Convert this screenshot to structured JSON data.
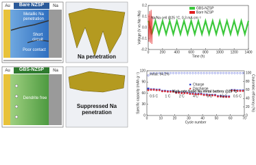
{
  "diagrams": [
    {
      "header": "Bare NZSP",
      "left": "Au",
      "right": "Na",
      "notes": [
        "Metallic Na penetration",
        "Short circuit",
        "Poor contact"
      ]
    },
    {
      "header": "GBS-NZSP",
      "left": "Au",
      "right": "Na",
      "notes": [
        "Dendrite free"
      ]
    }
  ],
  "images": [
    {
      "caption": "Na penetration"
    },
    {
      "caption": "Suppressed Na penetration"
    }
  ],
  "chart_data": [
    {
      "type": "line",
      "annotation": "Na/Na cell @25 °C, 0.3 mA cm⁻²",
      "x_label": "Time (h)",
      "y_label": "Voltage (V vs Na⁺/Na)",
      "xlim": [
        0,
        1400
      ],
      "xticks": [
        0,
        200,
        400,
        600,
        800,
        1000,
        1200,
        1400
      ],
      "ylim": [
        -0.2,
        0.2
      ],
      "yticks": [
        -0.2,
        -0.1,
        {
          "value": 0,
          "label": "0.0"
        },
        0.1,
        0.2
      ],
      "legend": "upper left",
      "series": [
        {
          "name": "GBS-NZSP",
          "color": "#3cc83c",
          "x": [
            0,
            50,
            100,
            150,
            200,
            250,
            300,
            350,
            400,
            450,
            500,
            550,
            600,
            650,
            700,
            750,
            800,
            850,
            900,
            950,
            1000,
            1050,
            1100,
            1150,
            1200,
            1250,
            1300,
            1350,
            1400
          ],
          "values": [
            0.06,
            -0.06,
            0.06,
            -0.06,
            0.06,
            -0.06,
            0.06,
            -0.06,
            0.06,
            -0.06,
            0.06,
            -0.06,
            0.06,
            -0.06,
            0.06,
            -0.06,
            0.06,
            -0.06,
            0.06,
            -0.06,
            0.06,
            -0.06,
            0.06,
            -0.06,
            0.06,
            -0.06,
            0.06,
            -0.06,
            0.06
          ]
        },
        {
          "name": "Bare NZSP",
          "color": "#e02020",
          "x": [
            0,
            10,
            20,
            30,
            40,
            50,
            60
          ],
          "values": [
            0.12,
            -0.13,
            0.15,
            -0.14,
            0.16,
            -0.15,
            0.1
          ]
        }
      ]
    },
    {
      "type": "scatter",
      "annotation": "High-rate Solid Na metal battery @25 ℃",
      "note": "Initial: 94.2%",
      "x_label": "Cycle number",
      "y_label": "Specific capacity (mAh g⁻¹)",
      "y2_label": "Coulombic efficiency (%)",
      "rate_labels": [
        "0.5 C",
        "1 C",
        "2 C",
        "4 C",
        "6 C",
        "10 C",
        "0.5 C"
      ],
      "xlim": [
        0,
        70
      ],
      "xticks": [
        0,
        10,
        20,
        30,
        40,
        50,
        60,
        70
      ],
      "ylim": [
        0,
        120
      ],
      "yticks": [
        0,
        30,
        60,
        90,
        120
      ],
      "y2lim": [
        0,
        105
      ],
      "y2ticks": [
        0,
        20,
        40,
        60,
        80,
        100
      ],
      "legend": "upper right",
      "x": [
        1,
        3,
        5,
        7,
        9,
        11,
        13,
        15,
        17,
        19,
        21,
        23,
        25,
        27,
        29,
        31,
        33,
        35,
        37,
        39,
        41,
        43,
        45,
        47,
        49,
        51,
        53,
        55,
        57,
        59,
        61,
        63,
        65,
        67,
        69
      ],
      "series": [
        {
          "name": "Charge",
          "color": "#2a3fc8",
          "marker": "square",
          "values": [
            72,
            70,
            70,
            69,
            69,
            66,
            66,
            65,
            65,
            65,
            62,
            62,
            61,
            61,
            61,
            59,
            59,
            58,
            58,
            58,
            56,
            56,
            55,
            55,
            55,
            52,
            52,
            51,
            51,
            51,
            68,
            68,
            67,
            67,
            67
          ]
        },
        {
          "name": "Discharge",
          "color": "#e03030",
          "marker": "circle",
          "values": [
            68,
            69,
            69,
            68,
            68,
            65,
            65,
            64,
            64,
            64,
            61,
            61,
            60,
            60,
            60,
            58,
            58,
            57,
            57,
            57,
            55,
            55,
            54,
            54,
            54,
            51,
            51,
            50,
            50,
            50,
            67,
            67,
            66,
            66,
            66
          ]
        },
        {
          "color": "#4a5ad8",
          "marker": "circle",
          "axis": "y2",
          "values": [
            94.2,
            99,
            99.5,
            99.6,
            99.6,
            99.6,
            99.7,
            99.7,
            99.7,
            99.7,
            99.7,
            99.8,
            99.8,
            99.8,
            99.8,
            99.8,
            99.8,
            99.8,
            99.8,
            99.8,
            99.8,
            99.8,
            99.8,
            99.8,
            99.8,
            99.8,
            99.8,
            99.8,
            99.8,
            99.8,
            99.7,
            99.7,
            99.7,
            99.7,
            99.7
          ]
        }
      ]
    }
  ]
}
